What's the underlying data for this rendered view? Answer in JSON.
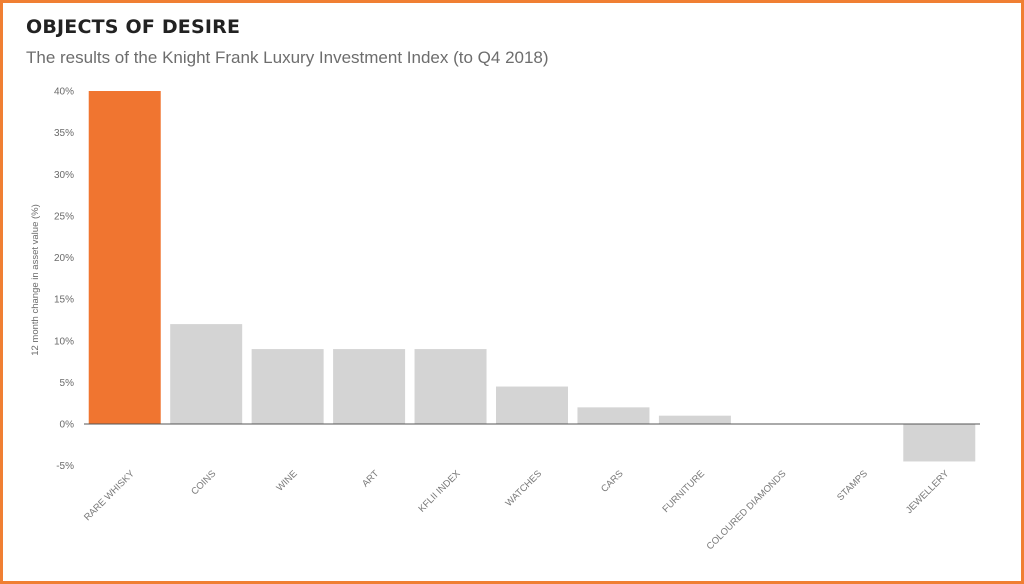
{
  "colors": {
    "border": "#f07f33",
    "highlight_bar": "#f07530",
    "bar": "#d4d4d4",
    "axis": "#555555"
  },
  "chart_data": {
    "type": "bar",
    "title": "OBJECTS OF DESIRE",
    "subtitle": "The results of the Knight Frank Luxury Investment Index (to Q4 2018)",
    "xlabel": "",
    "ylabel": "12 month change in asset value (%)",
    "ylim": [
      -5,
      40
    ],
    "yticks": [
      "40%",
      "35%",
      "30%",
      "25%",
      "20%",
      "15%",
      "10%",
      "5%",
      "0%",
      "-5%"
    ],
    "categories": [
      "RARE WHISKY",
      "COINS",
      "WINE",
      "ART",
      "KFLII INDEX",
      "WATCHES",
      "CARS",
      "FURNITURE",
      "COLOURED DIAMONDS",
      "STAMPS",
      "JEWELLERY"
    ],
    "values": [
      40,
      12,
      9,
      9,
      9,
      4.5,
      2,
      1,
      0,
      0,
      -4.5
    ],
    "highlight_index": 0,
    "grid": false,
    "legend": "none"
  }
}
